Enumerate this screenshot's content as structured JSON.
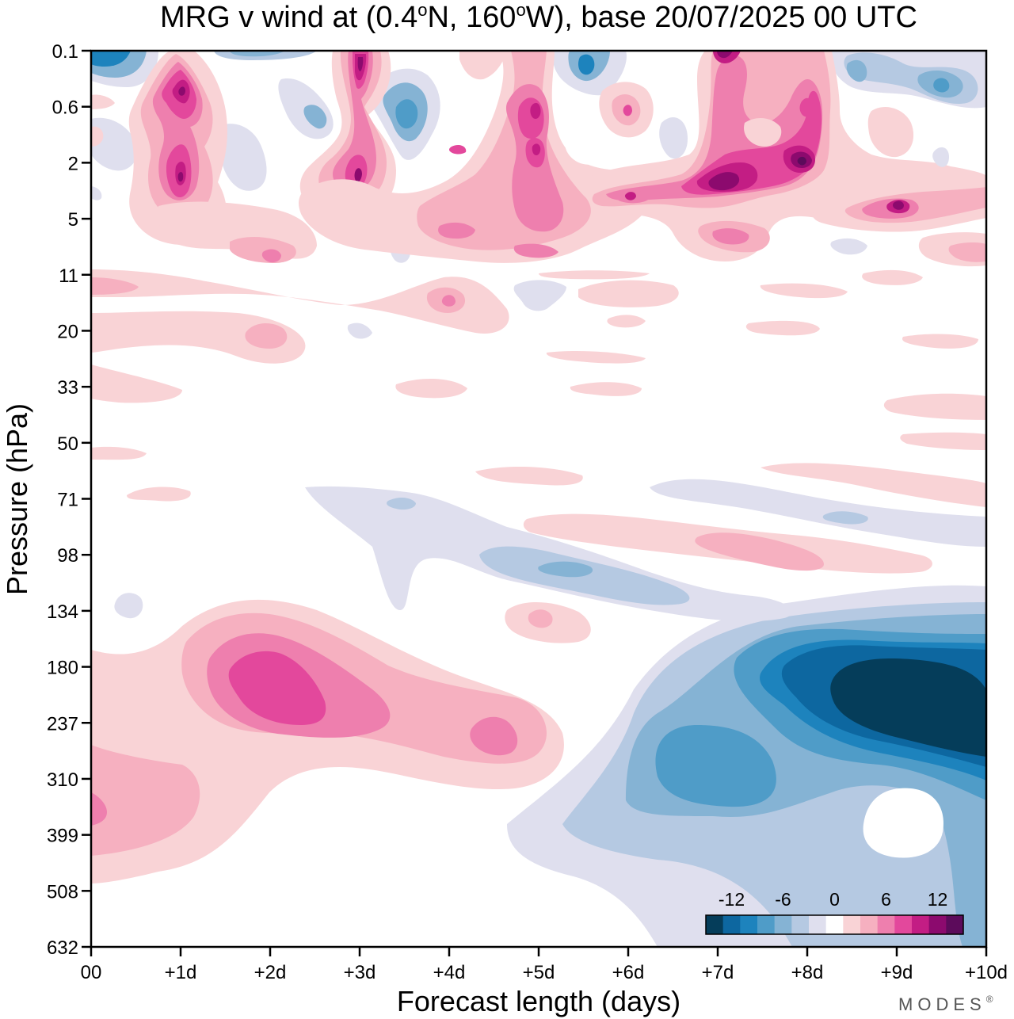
{
  "chart_data": {
    "type": "heatmap",
    "title": "MRG v wind at (0.4°N, 160°W),  base 20/07/2025  00 UTC",
    "title_parts": {
      "prefix": "MRG v wind at (0.4",
      "lat_deg": "o",
      "lat_rest": "N, 160",
      "lon_deg": "o",
      "suffix": "W),  base 20/07/2025  00 UTC"
    },
    "xlabel": "Forecast length (days)",
    "ylabel": "Pressure (hPa)",
    "x_tick_labels": [
      "00",
      "+1d",
      "+2d",
      "+3d",
      "+4d",
      "+5d",
      "+6d",
      "+7d",
      "+8d",
      "+9d",
      "+10d"
    ],
    "y_tick_labels": [
      "0.1",
      "0.6",
      "2",
      "5",
      "11",
      "20",
      "33",
      "50",
      "71",
      "98",
      "134",
      "180",
      "237",
      "310",
      "399",
      "508",
      "632"
    ],
    "xlim": [
      0,
      10
    ],
    "ylim_hPa": [
      0.1,
      632
    ],
    "colorbar": {
      "tick_labels": [
        "-12",
        "-6",
        "0",
        "6",
        "12"
      ],
      "levels": [
        -15,
        -12,
        -10,
        -8,
        -6,
        -4,
        -2,
        0,
        2,
        4,
        6,
        8,
        10,
        12,
        15
      ],
      "colors": [
        "#053d5a",
        "#0d67a0",
        "#1d83bd",
        "#4f9cc8",
        "#85b3d4",
        "#b5c9e2",
        "#dfdfee",
        "#ffffff",
        "#f9d3d6",
        "#f6b0c0",
        "#ee7fae",
        "#e3489c",
        "#c31d84",
        "#8c0a6e",
        "#5c0b5b"
      ]
    },
    "regions": [
      {
        "desc": "strong negative v, upper troposphere",
        "x": [
          8.3,
          10
        ],
        "p": [
          180,
          300
        ],
        "value": -15
      },
      {
        "desc": "negative v, upper troposphere",
        "x": [
          6.5,
          10
        ],
        "p": [
          140,
          500
        ],
        "value": -8
      },
      {
        "desc": "moderate negative v",
        "x": [
          6.3,
          7.8
        ],
        "p": [
          237,
          330
        ],
        "value": -10
      },
      {
        "desc": "positive v, upper troposphere",
        "x": [
          1.5,
          3.5
        ],
        "p": [
          170,
          260
        ],
        "value": 10
      },
      {
        "desc": "positive v near 4.5d",
        "x": [
          4.2,
          4.8
        ],
        "p": [
          220,
          280
        ],
        "value": 10
      },
      {
        "desc": "positive v near surface at start",
        "x": [
          0,
          1.2
        ],
        "p": [
          180,
          510
        ],
        "value": 6
      },
      {
        "desc": "weak negative v, lower stratosphere",
        "x": [
          2.5,
          6
        ],
        "p": [
          71,
          134
        ],
        "value": -4
      },
      {
        "desc": "positive v, lower stratosphere",
        "x": [
          5,
          9.5
        ],
        "p": [
          80,
          110
        ],
        "value": 4
      },
      {
        "desc": "positive v, upper stratosphere",
        "x": [
          6.5,
          8.5
        ],
        "p": [
          1,
          3
        ],
        "value": 14
      },
      {
        "desc": "positive v near 1d",
        "x": [
          0.9,
          1.2
        ],
        "p": [
          0.3,
          3
        ],
        "value": 14
      },
      {
        "desc": "positive v near 3d",
        "x": [
          2.8,
          3.1
        ],
        "p": [
          0.1,
          4
        ],
        "value": 12
      },
      {
        "desc": "positive v near 5d",
        "x": [
          4.8,
          5.2
        ],
        "p": [
          0.5,
          5
        ],
        "value": 10
      },
      {
        "desc": "negative v near 3.5d",
        "x": [
          3.3,
          3.7
        ],
        "p": [
          0.5,
          1.5
        ],
        "value": -8
      },
      {
        "desc": "negative v near 9.5d",
        "x": [
          9,
          10
        ],
        "p": [
          0.1,
          0.8
        ],
        "value": -6
      },
      {
        "desc": "positive v near 9d",
        "x": [
          8.5,
          10
        ],
        "p": [
          3,
          6
        ],
        "value": 10
      }
    ]
  },
  "watermark": "MODES",
  "watermark_reg": "®"
}
